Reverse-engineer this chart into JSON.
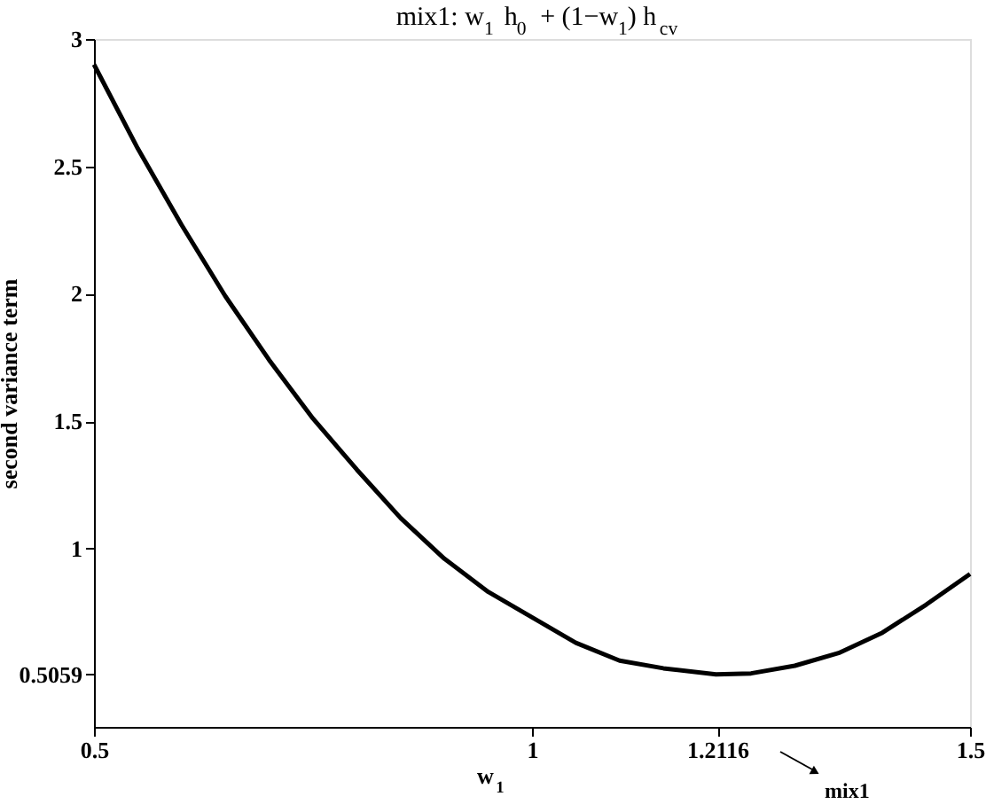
{
  "chart_data": {
    "type": "line",
    "title": "mix1: w$_{1}$ h$_{0}$ + (1−w$_{1}$) h$_{cv}$",
    "xlabel": "w$_{1}$",
    "ylabel": "second variance term",
    "x": [
      0.5,
      0.55,
      0.6,
      0.65,
      0.7,
      0.75,
      0.8,
      0.85,
      0.9,
      0.95,
      1.0,
      1.05,
      1.1,
      1.15,
      1.21,
      1.25,
      1.3,
      1.35,
      1.4,
      1.45,
      1.5
    ],
    "series": [
      {
        "color": "#000000",
        "values": [
          2.9,
          2.57,
          2.27,
          1.99,
          1.74,
          1.51,
          1.31,
          1.12,
          0.96,
          0.83,
          0.73,
          0.63,
          0.56,
          0.53,
          0.506,
          0.51,
          0.54,
          0.59,
          0.67,
          0.78,
          0.9
        ]
      }
    ],
    "xlim": [
      0.5,
      1.5
    ],
    "xticks": [
      0.5,
      1,
      {
        "value": 1.2116,
        "label": "1.2116"
      },
      1.5
    ],
    "ylim": [
      0.3,
      3
    ],
    "yticks": [
      {
        "value": 0.5059,
        "label": "0.5059"
      },
      1,
      1.5,
      2,
      2.5,
      3
    ],
    "grid": false,
    "line_style": "solid",
    "annotations": [
      "mix1"
    ]
  }
}
